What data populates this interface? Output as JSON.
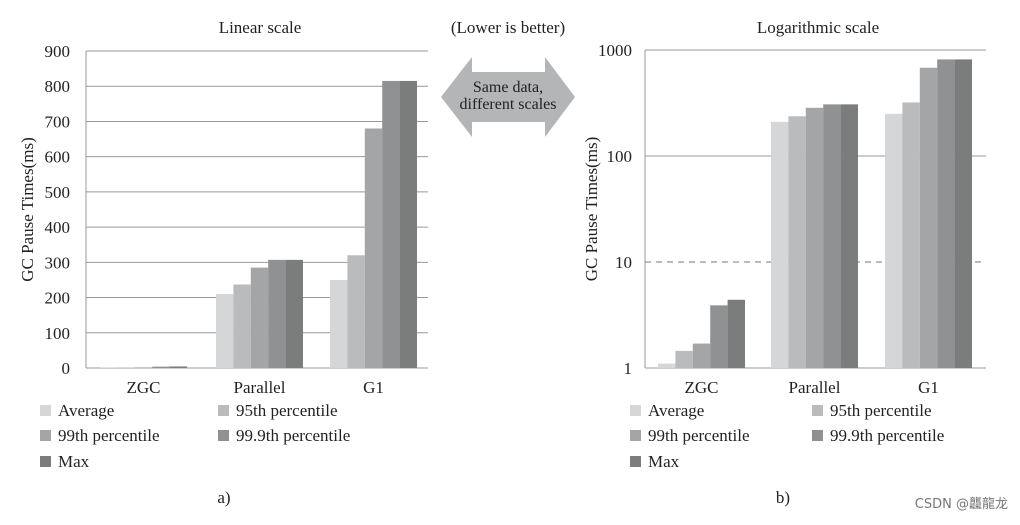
{
  "header": {
    "note": "(Lower is better)",
    "arrow_text": [
      "Same data,",
      "different scales"
    ]
  },
  "legend": [
    "Average",
    "95th percentile",
    "99th percentile",
    "99.9th percentile",
    "Max"
  ],
  "colors": [
    "#d4d6d7",
    "#b9bbbd",
    "#a3a5a6",
    "#8f9192",
    "#7b7d7d"
  ],
  "watermark": "CSDN @龘龍龙",
  "chart_data": [
    {
      "type": "bar",
      "title": "Linear scale",
      "caption": "a)",
      "ylabel": "GC Pause Times(ms)",
      "ylim": [
        0,
        900
      ],
      "yticks": [
        "0",
        "100",
        "200",
        "300",
        "400",
        "500",
        "600",
        "700",
        "800",
        "900"
      ],
      "categories": [
        "ZGC",
        "Parallel",
        "G1"
      ],
      "series": [
        {
          "name": "Average",
          "values": [
            1.1,
            210,
            250
          ]
        },
        {
          "name": "95th percentile",
          "values": [
            1.45,
            237,
            320
          ]
        },
        {
          "name": "99th percentile",
          "values": [
            1.7,
            285,
            680
          ]
        },
        {
          "name": "99.9th percentile",
          "values": [
            3.9,
            307,
            815
          ]
        },
        {
          "name": "Max",
          "values": [
            4.4,
            307,
            815
          ]
        }
      ]
    },
    {
      "type": "bar",
      "scale": "log",
      "title": "Logarithmic scale",
      "caption": "b)",
      "ylabel": "GC Pause Times(ms)",
      "ylim": [
        1,
        1000
      ],
      "yticks": [
        "1",
        "10",
        "100",
        "1000"
      ],
      "reference_line": 10,
      "categories": [
        "ZGC",
        "Parallel",
        "G1"
      ],
      "series": [
        {
          "name": "Average",
          "values": [
            1.1,
            210,
            250
          ]
        },
        {
          "name": "95th percentile",
          "values": [
            1.45,
            237,
            320
          ]
        },
        {
          "name": "99th percentile",
          "values": [
            1.7,
            285,
            680
          ]
        },
        {
          "name": "99.9th percentile",
          "values": [
            3.9,
            307,
            815
          ]
        },
        {
          "name": "Max",
          "values": [
            4.4,
            307,
            815
          ]
        }
      ]
    }
  ]
}
